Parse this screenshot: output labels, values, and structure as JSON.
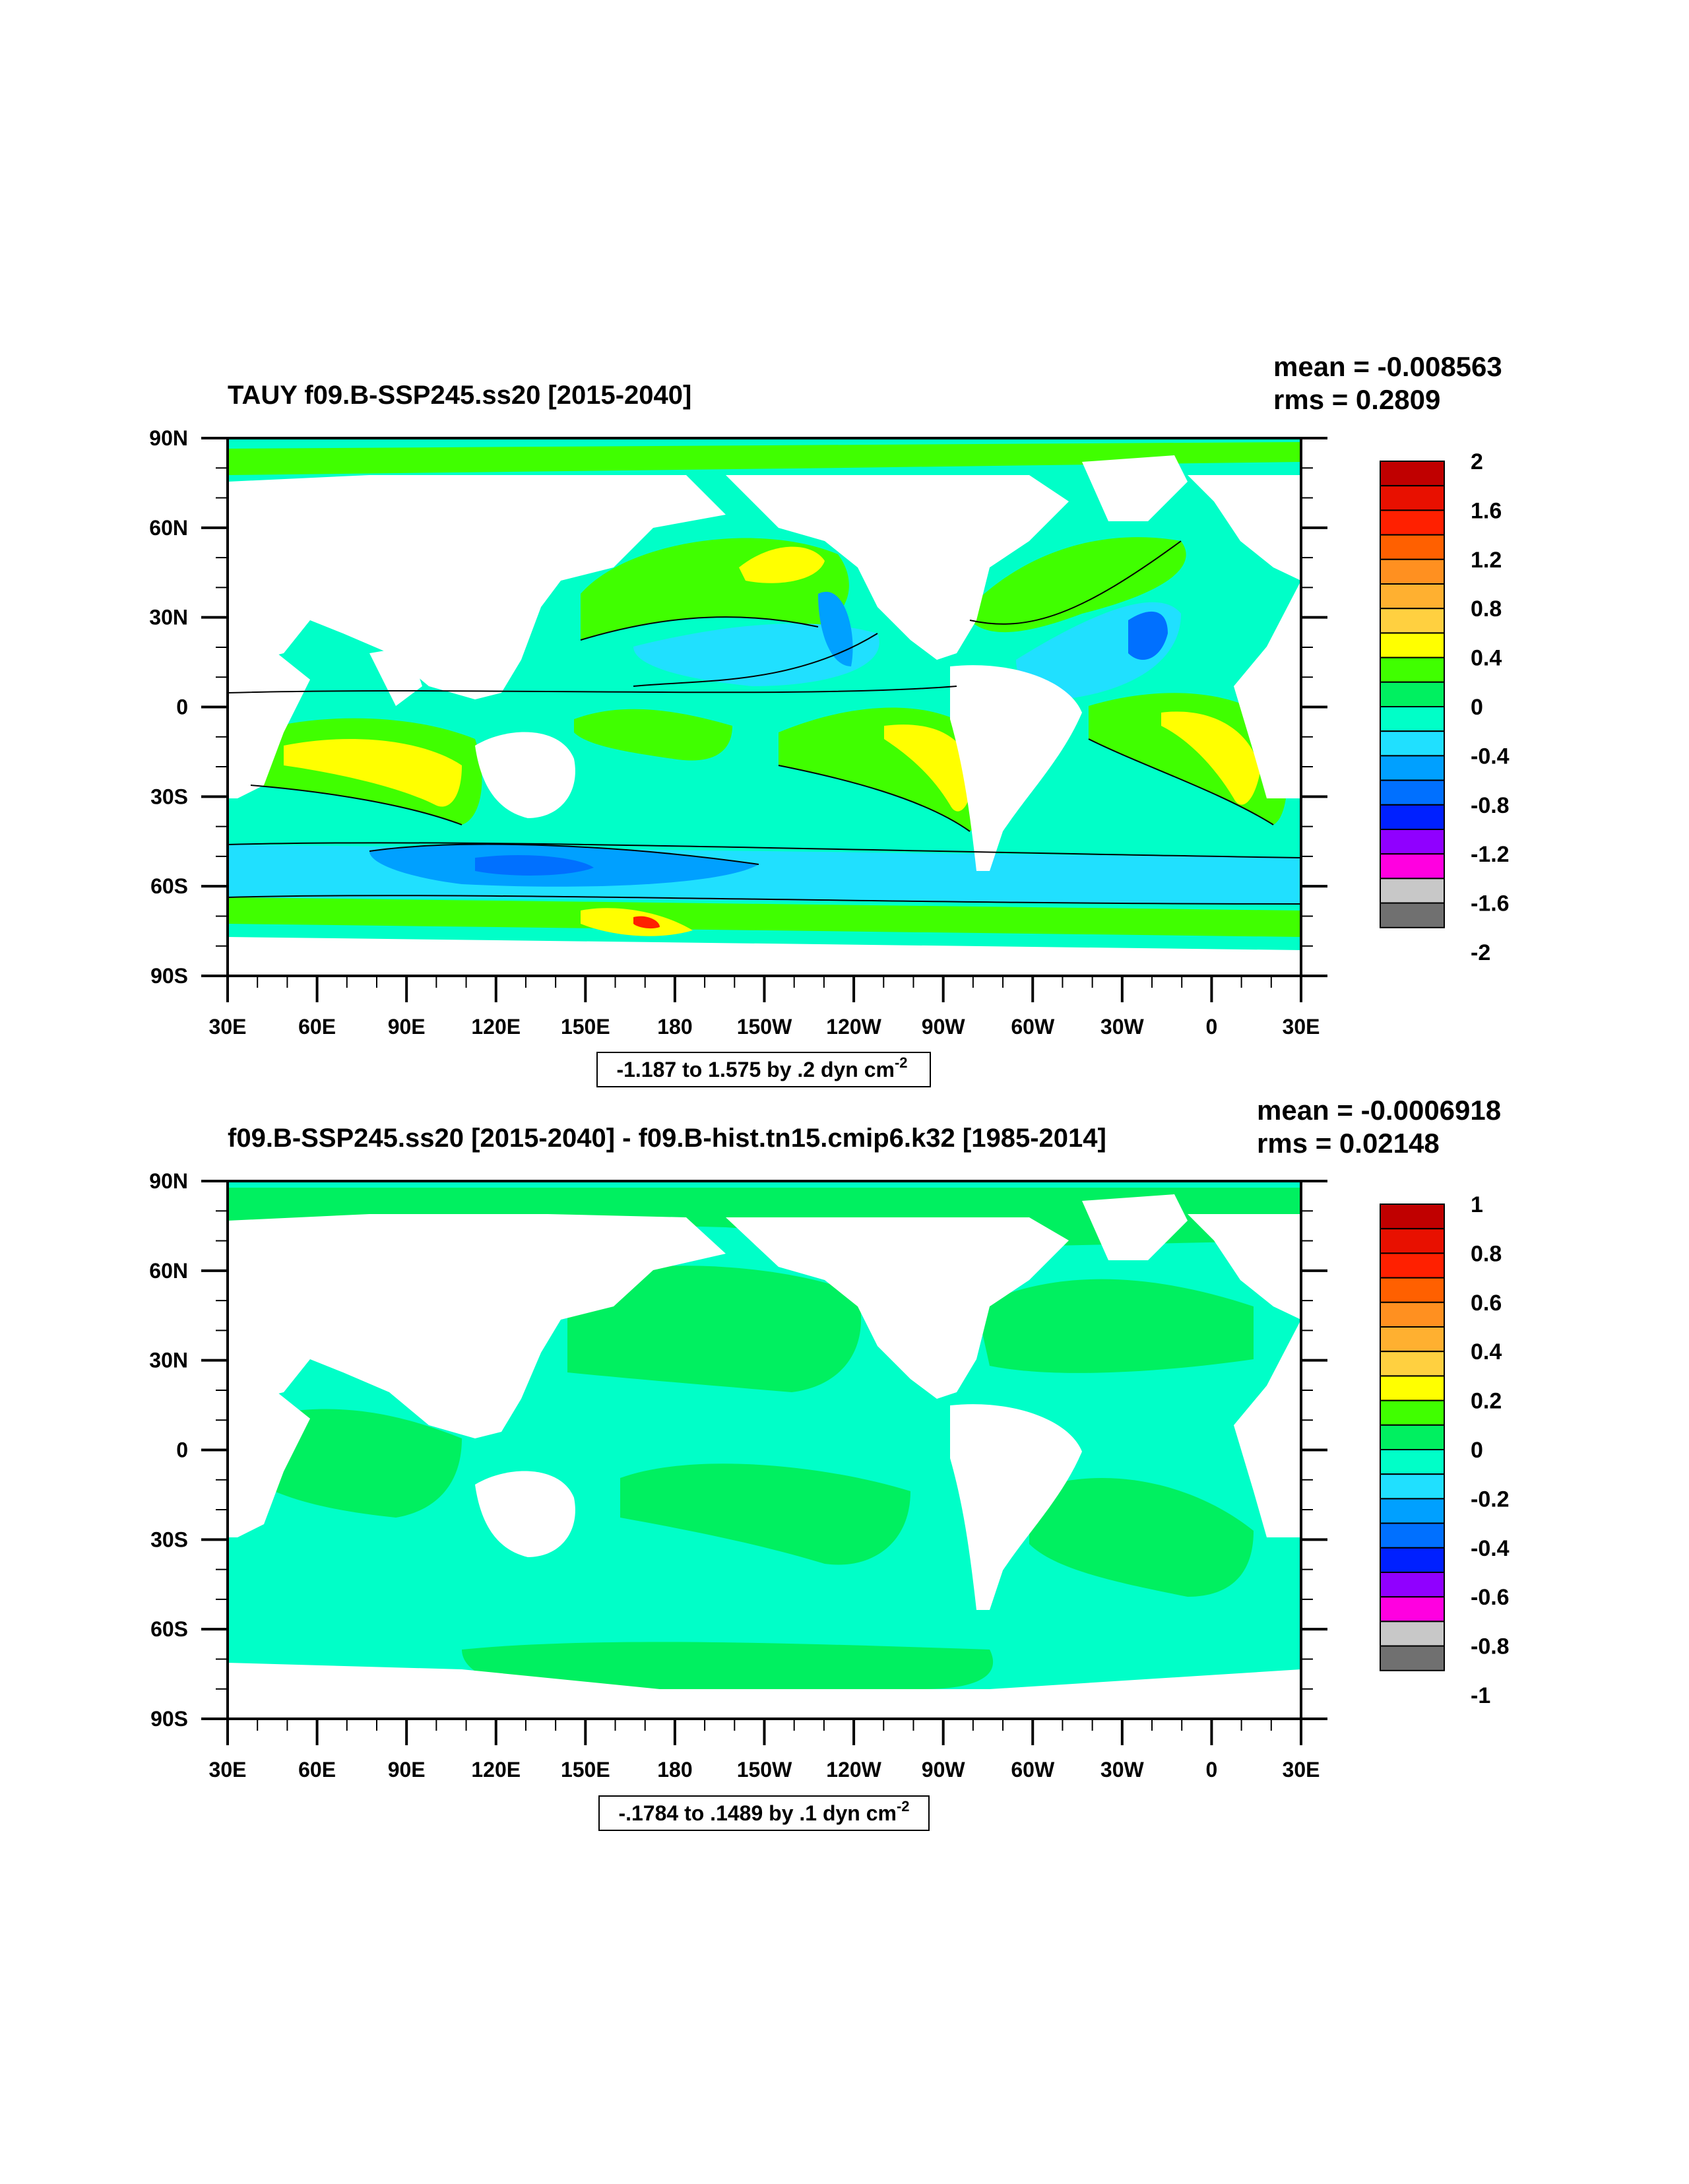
{
  "colors": {
    "fill_map": {
      "2": "#c80000",
      "1.6": "#e81000",
      "1.2": "#ff4000",
      "0.8": "#ff9020",
      "0.4": "#ffc040",
      "0": "#ffff00",
      "-0.4": "#30ff20",
      "-0.8": "#00ffc8",
      "-1.2": "#00e0ff",
      "-1.6": "#0090ff",
      "-2": "#0020ff"
    },
    "level_colors": [
      "#707070",
      "#c8c8c8",
      "#ff00e0",
      "#9000ff",
      "#0020ff",
      "#0070ff",
      "#00a0ff",
      "#20e0ff",
      "#00ffc8",
      "#00f060",
      "#40ff00",
      "#ffff00",
      "#ffd040",
      "#ffb030",
      "#ff9020",
      "#ff6000",
      "#ff2000",
      "#e81000",
      "#c00000"
    ],
    "ocean_zero": "#00ffc8",
    "ocean_pos": "#00f060",
    "ocean_neg": "#20e0ff",
    "land": "#ffffff"
  },
  "panels": [
    {
      "title": "TAUY f09.B-SSP245.ss20 [2015-2040]",
      "mean": "mean = -0.008563",
      "rms": "rms = 0.2809",
      "range": "-1.187 to 1.575 by .2 dyn cm",
      "range_sup": "-2",
      "colorbar_labels": [
        "2",
        "1.6",
        "1.2",
        "0.8",
        "0.4",
        "0",
        "-0.4",
        "-0.8",
        "-1.2",
        "-1.6",
        "-2"
      ],
      "colorbar_min": -2,
      "colorbar_max": 2
    },
    {
      "title": "f09.B-SSP245.ss20 [2015-2040] - f09.B-hist.tn15.cmip6.k32 [1985-2014]",
      "mean": "mean = -0.0006918",
      "rms": "rms = 0.02148",
      "range": "-.1784 to .1489 by .1 dyn cm",
      "range_sup": "-2",
      "colorbar_labels": [
        "1",
        "0.8",
        "0.6",
        "0.4",
        "0.2",
        "0",
        "-0.2",
        "-0.4",
        "-0.6",
        "-0.8",
        "-1"
      ],
      "colorbar_min": -1,
      "colorbar_max": 1
    }
  ],
  "axes": {
    "lat_labels": [
      "90N",
      "60N",
      "30N",
      "0",
      "30S",
      "60S",
      "90S"
    ],
    "lon_labels": [
      "30E",
      "60E",
      "90E",
      "120E",
      "150E",
      "180",
      "150W",
      "120W",
      "90W",
      "60W",
      "30W",
      "0",
      "30E"
    ]
  }
}
